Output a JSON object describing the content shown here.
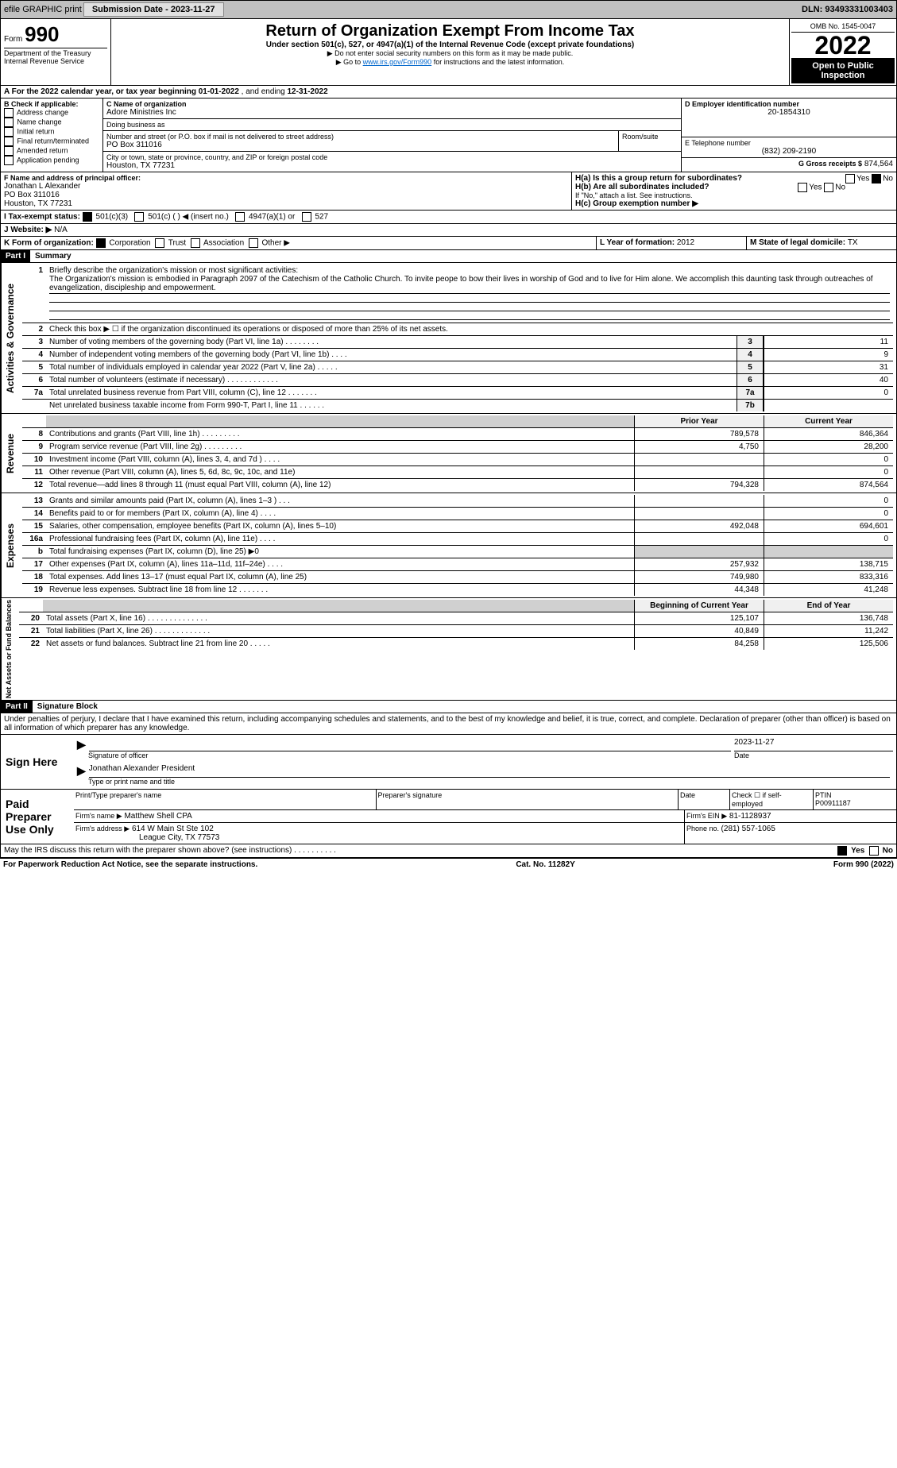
{
  "top_bar": {
    "efile": "efile GRAPHIC print",
    "sub_date_lbl": "Submission Date - 2023-11-27",
    "dln": "DLN: 93493331003403"
  },
  "header": {
    "form": "Form",
    "form_no": "990",
    "title": "Return of Organization Exempt From Income Tax",
    "sub1": "Under section 501(c), 527, or 4947(a)(1) of the Internal Revenue Code (except private foundations)",
    "sub2": "▶ Do not enter social security numbers on this form as it may be made public.",
    "sub3_pre": "▶ Go to ",
    "sub3_link": "www.irs.gov/Form990",
    "sub3_post": " for instructions and the latest information.",
    "dept": "Department of the Treasury",
    "irs": "Internal Revenue Service",
    "omb": "OMB No. 1545-0047",
    "year": "2022",
    "open": "Open to Public Inspection"
  },
  "rowA": {
    "text_pre": "A For the 2022 calendar year, or tax year beginning ",
    "begin": "01-01-2022",
    "mid": " , and ending ",
    "end": "12-31-2022"
  },
  "boxB": {
    "hdr": "B Check if applicable:",
    "items": [
      "Address change",
      "Name change",
      "Initial return",
      "Final return/terminated",
      "Amended return",
      "Application pending"
    ]
  },
  "boxC": {
    "name_lbl": "C Name of organization",
    "name": "Adore Ministries Inc",
    "dba_lbl": "Doing business as",
    "dba": "",
    "addr_lbl": "Number and street (or P.O. box if mail is not delivered to street address)",
    "room_lbl": "Room/suite",
    "addr": "PO Box 311016",
    "city_lbl": "City or town, state or province, country, and ZIP or foreign postal code",
    "city": "Houston, TX  77231"
  },
  "boxD": {
    "lbl": "D Employer identification number",
    "val": "20-1854310"
  },
  "boxE": {
    "lbl": "E Telephone number",
    "val": "(832) 209-2190"
  },
  "boxG": {
    "lbl": "G Gross receipts $",
    "val": "874,564"
  },
  "boxF": {
    "lbl": "F Name and address of principal officer:",
    "lines": [
      "Jonathan L Alexander",
      "PO Box 311016",
      "Houston, TX  77231"
    ]
  },
  "boxH": {
    "a": "H(a)  Is this a group return for subordinates?",
    "a_yes": "Yes",
    "a_no": "No",
    "b": "H(b)  Are all subordinates included?",
    "b_yes": "Yes",
    "b_no": "No",
    "b_note": "If \"No,\" attach a list. See instructions.",
    "c": "H(c)  Group exemption number ▶"
  },
  "boxI": {
    "lbl": "I  Tax-exempt status:",
    "opts": [
      "501(c)(3)",
      "501(c) (  ) ◀ (insert no.)",
      "4947(a)(1) or",
      "527"
    ]
  },
  "boxJ": {
    "lbl": "J  Website: ▶",
    "val": "  N/A"
  },
  "boxK": {
    "lbl": "K Form of organization:",
    "opts": [
      "Corporation",
      "Trust",
      "Association",
      "Other ▶"
    ]
  },
  "boxL": {
    "lbl": "L Year of formation: ",
    "val": "2012"
  },
  "boxM": {
    "lbl": "M State of legal domicile: ",
    "val": "TX"
  },
  "part1": {
    "hdr": "Part I",
    "title": "Summary"
  },
  "gov": {
    "label": "Activities & Governance",
    "l1": "Briefly describe the organization's mission or most significant activities:",
    "l1_text": "The Organization's mission is embodied in Paragraph 2097 of the Catechism of the Catholic Church. To invite peope to bow their lives in worship of God and to live for Him alone. We accomplish this daunting task through outreaches of evangelization, discipleship and empowerment.",
    "l2": "Check this box ▶ ☐  if the organization discontinued its operations or disposed of more than 25% of its net assets.",
    "rows": [
      {
        "n": "3",
        "t": "Number of voting members of the governing body (Part VI, line 1a)   .    .    .    .    .    .    .    .",
        "b": "3",
        "v": "11"
      },
      {
        "n": "4",
        "t": "Number of independent voting members of the governing body (Part VI, line 1b)  .    .    .    .",
        "b": "4",
        "v": "9"
      },
      {
        "n": "5",
        "t": "Total number of individuals employed in calendar year 2022 (Part V, line 2a)  .    .    .    .    .",
        "b": "5",
        "v": "31"
      },
      {
        "n": "6",
        "t": "Total number of volunteers (estimate if necessary)   .    .    .    .    .    .    .    .    .    .    .    .",
        "b": "6",
        "v": "40"
      },
      {
        "n": "7a",
        "t": "Total unrelated business revenue from Part VIII, column (C), line 12   .    .    .    .    .    .    .",
        "b": "7a",
        "v": "0"
      },
      {
        "n": "",
        "t": "Net unrelated business taxable income from Form 990-T, Part I, line 11   .    .    .    .    .    .",
        "b": "7b",
        "v": ""
      }
    ]
  },
  "rev": {
    "label": "Revenue",
    "hdr_prior": "Prior Year",
    "hdr_cur": "Current Year",
    "rows": [
      {
        "n": "8",
        "t": "Contributions and grants (Part VIII, line 1h)  .    .    .    .    .    .    .    .    .",
        "p": "789,578",
        "c": "846,364"
      },
      {
        "n": "9",
        "t": "Program service revenue (Part VIII, line 2g)   .    .    .    .    .    .    .    .    .",
        "p": "4,750",
        "c": "28,200"
      },
      {
        "n": "10",
        "t": "Investment income (Part VIII, column (A), lines 3, 4, and 7d )   .    .    .    .",
        "p": "",
        "c": "0"
      },
      {
        "n": "11",
        "t": "Other revenue (Part VIII, column (A), lines 5, 6d, 8c, 9c, 10c, and 11e)",
        "p": "",
        "c": "0"
      },
      {
        "n": "12",
        "t": "Total revenue—add lines 8 through 11 (must equal Part VIII, column (A), line 12)",
        "p": "794,328",
        "c": "874,564"
      }
    ]
  },
  "exp": {
    "label": "Expenses",
    "rows": [
      {
        "n": "13",
        "t": "Grants and similar amounts paid (Part IX, column (A), lines 1–3 )  .    .    .",
        "p": "",
        "c": "0"
      },
      {
        "n": "14",
        "t": "Benefits paid to or for members (Part IX, column (A), line 4)  .    .    .    .",
        "p": "",
        "c": "0"
      },
      {
        "n": "15",
        "t": "Salaries, other compensation, employee benefits (Part IX, column (A), lines 5–10)",
        "p": "492,048",
        "c": "694,601"
      },
      {
        "n": "16a",
        "t": "Professional fundraising fees (Part IX, column (A), line 11e)   .    .    .    .",
        "p": "",
        "c": "0"
      },
      {
        "n": "b",
        "t": "Total fundraising expenses (Part IX, column (D), line 25) ▶0",
        "p": "gray",
        "c": "gray"
      },
      {
        "n": "17",
        "t": "Other expenses (Part IX, column (A), lines 11a–11d, 11f–24e)   .    .    .    .",
        "p": "257,932",
        "c": "138,715"
      },
      {
        "n": "18",
        "t": "Total expenses. Add lines 13–17 (must equal Part IX, column (A), line 25)",
        "p": "749,980",
        "c": "833,316"
      },
      {
        "n": "19",
        "t": "Revenue less expenses. Subtract line 18 from line 12 .    .    .    .    .    .    .",
        "p": "44,348",
        "c": "41,248"
      }
    ]
  },
  "net": {
    "label": "Net Assets or Fund Balances",
    "hdr_beg": "Beginning of Current Year",
    "hdr_end": "End of Year",
    "rows": [
      {
        "n": "20",
        "t": "Total assets (Part X, line 16) .    .    .    .    .    .    .    .    .    .    .    .    .    .",
        "p": "125,107",
        "c": "136,748"
      },
      {
        "n": "21",
        "t": "Total liabilities (Part X, line 26) .    .    .    .    .    .    .    .    .    .    .    .    .",
        "p": "40,849",
        "c": "11,242"
      },
      {
        "n": "22",
        "t": "Net assets or fund balances. Subtract line 21 from line 20 .    .    .    .    .",
        "p": "84,258",
        "c": "125,506"
      }
    ]
  },
  "part2": {
    "hdr": "Part II",
    "title": "Signature Block",
    "decl": "Under penalties of perjury, I declare that I have examined this return, including accompanying schedules and statements, and to the best of my knowledge and belief, it is true, correct, and complete. Declaration of preparer (other than officer) is based on all information of which preparer has any knowledge."
  },
  "sign": {
    "here": "Sign Here",
    "sig_lbl": "Signature of officer",
    "date_lbl": "Date",
    "date": "2023-11-27",
    "name": "Jonathan Alexander  President",
    "name_lbl": "Type or print name and title"
  },
  "prep": {
    "hdr": "Paid Preparer Use Only",
    "c1": "Print/Type preparer's name",
    "c2": "Preparer's signature",
    "c3": "Date",
    "c4": "Check ☐ if self-employed",
    "c5": "PTIN",
    "ptin": "P00911187",
    "firm_lbl": "Firm's name    ▶",
    "firm": "Matthew Shell CPA",
    "ein_lbl": "Firm's EIN ▶",
    "ein": "81-1128937",
    "addr_lbl": "Firm's address ▶",
    "addr1": "614 W Main St Ste 102",
    "addr2": "League City, TX  77573",
    "phone_lbl": "Phone no. ",
    "phone": "(281) 557-1065"
  },
  "may_irs": {
    "text": "May the IRS discuss this return with the preparer shown above? (see instructions)   .    .    .    .    .    .    .    .    .    .",
    "yes": "Yes",
    "no": "No"
  },
  "footer": {
    "left": "For Paperwork Reduction Act Notice, see the separate instructions.",
    "mid": "Cat. No. 11282Y",
    "right": "Form 990 (2022)"
  }
}
